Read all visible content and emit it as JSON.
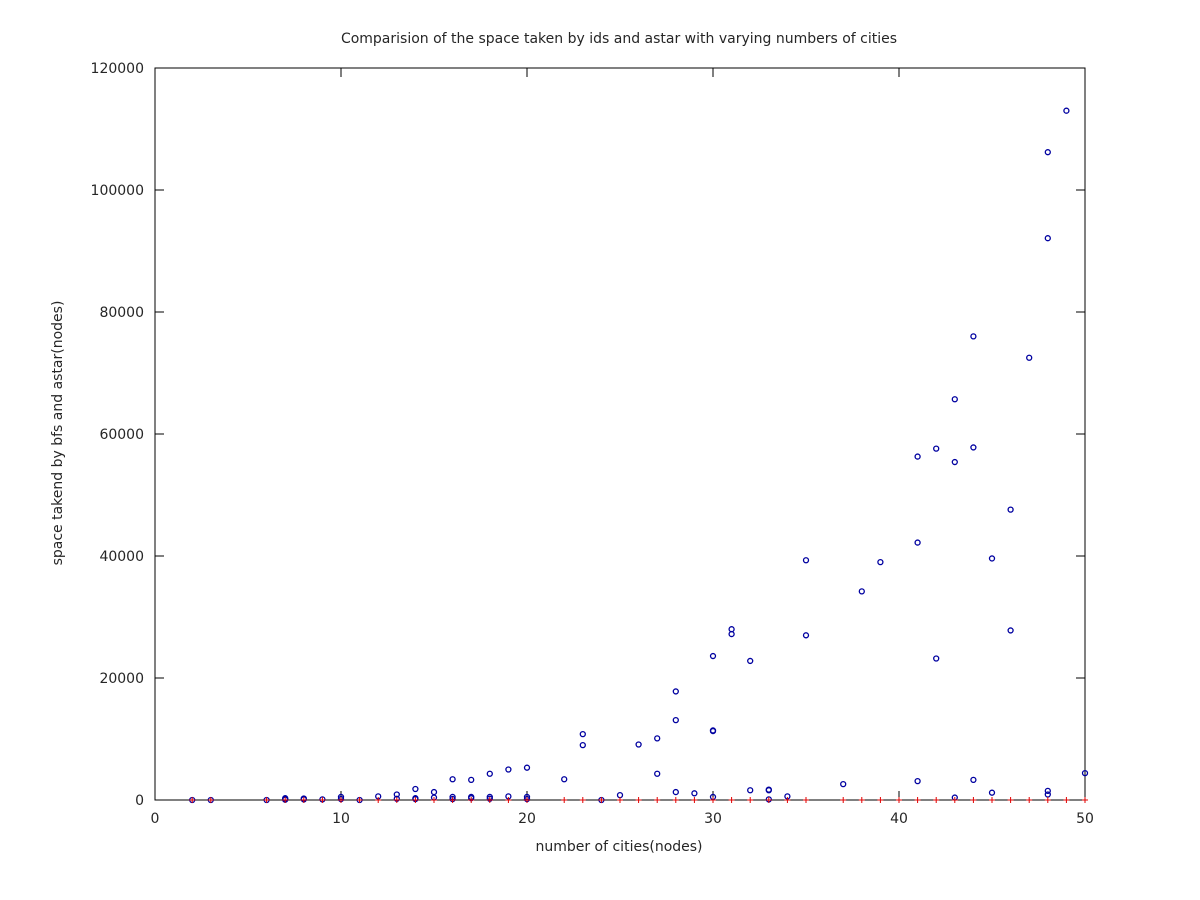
{
  "chart_data": {
    "type": "scatter",
    "title": "Comparision of the space taken by ids and astar with varying numbers of cities",
    "xlabel": "number of cities(nodes)",
    "ylabel": "space takend by bfs and astar(nodes)",
    "xlim": [
      0,
      50
    ],
    "ylim": [
      0,
      120000
    ],
    "xticks": [
      0,
      10,
      20,
      30,
      40,
      50
    ],
    "yticks": [
      0,
      20000,
      40000,
      60000,
      80000,
      100000,
      120000
    ],
    "grid": false,
    "legend": "none",
    "series": [
      {
        "marker": "circle",
        "color": "#0000a0",
        "points": [
          [
            2,
            0
          ],
          [
            3,
            0
          ],
          [
            6,
            0
          ],
          [
            7,
            50
          ],
          [
            7,
            150
          ],
          [
            7,
            300
          ],
          [
            8,
            100
          ],
          [
            8,
            250
          ],
          [
            9,
            100
          ],
          [
            10,
            150
          ],
          [
            10,
            500
          ],
          [
            11,
            0
          ],
          [
            12,
            600
          ],
          [
            13,
            200
          ],
          [
            13,
            900
          ],
          [
            14,
            150
          ],
          [
            14,
            300
          ],
          [
            14,
            1800
          ],
          [
            15,
            400
          ],
          [
            15,
            1300
          ],
          [
            16,
            150
          ],
          [
            16,
            500
          ],
          [
            16,
            3400
          ],
          [
            17,
            300
          ],
          [
            17,
            500
          ],
          [
            17,
            3300
          ],
          [
            18,
            200
          ],
          [
            18,
            500
          ],
          [
            18,
            4300
          ],
          [
            19,
            600
          ],
          [
            19,
            5000
          ],
          [
            20,
            150
          ],
          [
            20,
            500
          ],
          [
            20,
            5300
          ],
          [
            22,
            3400
          ],
          [
            23,
            9000
          ],
          [
            23,
            10800
          ],
          [
            24,
            0
          ],
          [
            25,
            800
          ],
          [
            26,
            9100
          ],
          [
            27,
            4300
          ],
          [
            27,
            10100
          ],
          [
            28,
            1300
          ],
          [
            28,
            13100
          ],
          [
            28,
            17800
          ],
          [
            29,
            1100
          ],
          [
            30,
            500
          ],
          [
            30,
            11300
          ],
          [
            30,
            11400
          ],
          [
            30,
            23600
          ],
          [
            31,
            27200
          ],
          [
            31,
            28000
          ],
          [
            32,
            22800
          ],
          [
            32,
            1600
          ],
          [
            33,
            100
          ],
          [
            33,
            1600
          ],
          [
            33,
            1700
          ],
          [
            34,
            600
          ],
          [
            35,
            27000
          ],
          [
            35,
            39300
          ],
          [
            37,
            2600
          ],
          [
            38,
            34200
          ],
          [
            39,
            39000
          ],
          [
            41,
            3100
          ],
          [
            41,
            42200
          ],
          [
            41,
            56300
          ],
          [
            42,
            23200
          ],
          [
            42,
            57600
          ],
          [
            43,
            400
          ],
          [
            43,
            55400
          ],
          [
            43,
            65700
          ],
          [
            44,
            3300
          ],
          [
            44,
            57800
          ],
          [
            44,
            76000
          ],
          [
            45,
            1200
          ],
          [
            45,
            39600
          ],
          [
            46,
            27800
          ],
          [
            46,
            47600
          ],
          [
            47,
            72500
          ],
          [
            48,
            900
          ],
          [
            48,
            1500
          ],
          [
            48,
            92100
          ],
          [
            48,
            106200
          ],
          [
            49,
            113000
          ],
          [
            50,
            4400
          ]
        ]
      },
      {
        "marker": "plus",
        "color": "#e00000",
        "points": [
          [
            2,
            0
          ],
          [
            3,
            0
          ],
          [
            6,
            0
          ],
          [
            7,
            0
          ],
          [
            8,
            0
          ],
          [
            9,
            0
          ],
          [
            10,
            0
          ],
          [
            11,
            0
          ],
          [
            12,
            0
          ],
          [
            13,
            0
          ],
          [
            14,
            0
          ],
          [
            15,
            0
          ],
          [
            16,
            0
          ],
          [
            17,
            0
          ],
          [
            18,
            0
          ],
          [
            19,
            0
          ],
          [
            20,
            0
          ],
          [
            22,
            0
          ],
          [
            23,
            0
          ],
          [
            24,
            0
          ],
          [
            25,
            0
          ],
          [
            26,
            0
          ],
          [
            27,
            0
          ],
          [
            28,
            0
          ],
          [
            29,
            0
          ],
          [
            30,
            0
          ],
          [
            31,
            0
          ],
          [
            32,
            0
          ],
          [
            33,
            0
          ],
          [
            34,
            0
          ],
          [
            35,
            0
          ],
          [
            37,
            0
          ],
          [
            38,
            0
          ],
          [
            39,
            0
          ],
          [
            40,
            0
          ],
          [
            41,
            0
          ],
          [
            42,
            0
          ],
          [
            43,
            0
          ],
          [
            44,
            0
          ],
          [
            45,
            0
          ],
          [
            46,
            0
          ],
          [
            47,
            0
          ],
          [
            48,
            0
          ],
          [
            49,
            0
          ],
          [
            50,
            0
          ]
        ]
      }
    ]
  }
}
